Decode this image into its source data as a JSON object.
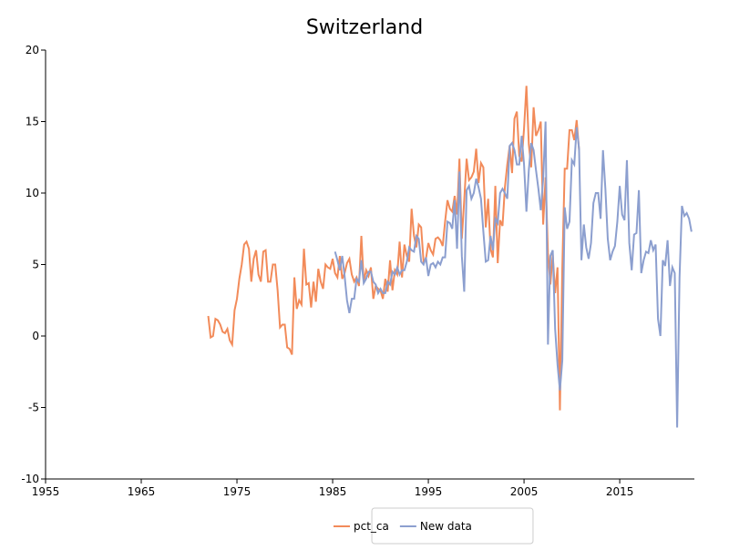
{
  "chart_data": {
    "type": "line",
    "title": "Switzerland",
    "x": [
      1972,
      1972.25,
      1972.5,
      1972.75,
      1973,
      1973.25,
      1973.5,
      1973.75,
      1974,
      1974.25,
      1974.5,
      1974.75,
      1975,
      1975.25,
      1975.5,
      1975.75,
      1976,
      1976.25,
      1976.5,
      1976.75,
      1977,
      1977.25,
      1977.5,
      1977.75,
      1978,
      1978.25,
      1978.5,
      1978.75,
      1979,
      1979.25,
      1979.5,
      1979.75,
      1980,
      1980.25,
      1980.5,
      1980.75,
      1981,
      1981.25,
      1981.5,
      1981.75,
      1982,
      1982.25,
      1982.5,
      1982.75,
      1983,
      1983.25,
      1983.5,
      1983.75,
      1984,
      1984.25,
      1984.5,
      1984.75,
      1985,
      1985.25,
      1985.5,
      1985.75,
      1986,
      1986.25,
      1986.5,
      1986.75,
      1987,
      1987.25,
      1987.5,
      1987.75,
      1988,
      1988.25,
      1988.5,
      1988.75,
      1989,
      1989.25,
      1989.5,
      1989.75,
      1990,
      1990.25,
      1990.5,
      1990.75,
      1991,
      1991.25,
      1991.5,
      1991.75,
      1992,
      1992.25,
      1992.5,
      1992.75,
      1993,
      1993.25,
      1993.5,
      1993.75,
      1994,
      1994.25,
      1994.5,
      1994.75,
      1995,
      1995.25,
      1995.5,
      1995.75,
      1996,
      1996.25,
      1996.5,
      1996.75,
      1997,
      1997.25,
      1997.5,
      1997.75,
      1998,
      1998.25,
      1998.5,
      1998.75,
      1999,
      1999.25,
      1999.5,
      1999.75,
      2000,
      2000.25,
      2000.5,
      2000.75,
      2001,
      2001.25,
      2001.5,
      2001.75,
      2002,
      2002.25,
      2002.5,
      2002.75,
      2003,
      2003.25,
      2003.5,
      2003.75,
      2004,
      2004.25,
      2004.5,
      2004.75,
      2005,
      2005.25,
      2005.5,
      2005.75,
      2006,
      2006.25,
      2006.5,
      2006.75,
      2007,
      2007.25,
      2007.5,
      2007.75,
      2008,
      2008.25,
      2008.5,
      2008.75,
      2009,
      2009.25,
      2009.5,
      2009.75,
      2010,
      2010.25,
      2010.5,
      2010.75,
      2011,
      2011.25,
      2011.5,
      2011.75,
      2012,
      2012.25,
      2012.5,
      2012.75,
      2013,
      2013.25,
      2013.5,
      2013.75,
      2014,
      2014.25,
      2014.5,
      2014.75,
      2015,
      2015.25,
      2015.5,
      2015.75,
      2016,
      2016.25,
      2016.5,
      2016.75,
      2017,
      2017.25,
      2017.5,
      2017.75,
      2018,
      2018.25,
      2018.5,
      2018.75,
      2019,
      2019.25,
      2019.5,
      2019.75,
      2020,
      2020.25,
      2020.5,
      2020.75,
      2021,
      2021.25,
      2021.5,
      2021.75,
      2022,
      2022.25,
      2022.5
    ],
    "series": [
      {
        "name": "pct_ca",
        "color": "#f28b5a",
        "values": [
          1.4,
          -0.1,
          0.0,
          1.2,
          1.1,
          0.8,
          0.3,
          0.2,
          0.5,
          -0.3,
          -0.6,
          1.8,
          2.6,
          4.0,
          5.0,
          6.4,
          6.6,
          6.1,
          3.8,
          5.4,
          6.0,
          4.3,
          3.8,
          5.9,
          6.0,
          3.8,
          3.8,
          5.0,
          5.0,
          3.2,
          0.6,
          0.8,
          0.8,
          -0.8,
          -0.9,
          -1.3,
          4.1,
          1.9,
          2.5,
          2.2,
          6.1,
          3.6,
          3.7,
          2.0,
          3.8,
          2.4,
          4.7,
          3.8,
          3.3,
          5.0,
          4.8,
          4.7,
          5.4,
          4.4,
          4.1,
          5.6,
          4.0,
          4.4,
          5.1,
          5.4,
          4.3,
          3.8,
          4.1,
          3.5,
          7.0,
          3.8,
          4.6,
          4.2,
          4.8,
          2.6,
          3.5,
          3.3,
          3.2,
          2.6,
          4.0,
          3.1,
          5.3,
          3.2,
          4.6,
          4.3,
          6.6,
          4.1,
          6.4,
          5.6,
          5.2,
          8.9,
          7.0,
          6.2,
          7.8,
          7.6,
          5.2,
          5.4,
          6.5,
          6.0,
          5.7,
          6.8,
          6.9,
          6.7,
          6.3,
          8.0,
          9.5,
          8.9,
          8.7,
          9.8,
          8.5,
          12.4,
          6.8,
          9.5,
          12.4,
          10.9,
          11.1,
          11.5,
          13.1,
          10.7,
          12.1,
          11.8,
          7.6,
          9.6,
          6.1,
          5.5,
          10.5,
          5.1,
          8.1,
          7.7,
          10.4,
          12.0,
          13.3,
          11.4,
          15.2,
          15.7,
          12.6,
          12.2,
          14.5,
          17.5,
          13.4,
          11.8,
          16.0,
          14.0,
          14.4,
          15.0,
          7.8,
          11.1,
          5.8,
          3.6,
          5.7,
          3.0,
          4.8,
          -5.2,
          4.8,
          11.7,
          11.7,
          14.4,
          14.4,
          13.7,
          15.1,
          13.0,
          null,
          null,
          null,
          null,
          null,
          null,
          null,
          null,
          null,
          null,
          null,
          null,
          null,
          null,
          null,
          null,
          null,
          null,
          null,
          null,
          null,
          null,
          null,
          null,
          null,
          null,
          null,
          null,
          null,
          null,
          null,
          null,
          null,
          null,
          null,
          null,
          null,
          null,
          null,
          null,
          null,
          null,
          null,
          null,
          null,
          null,
          null
        ]
      },
      {
        "name": "New data",
        "color": "#8c9fcf",
        "values": [
          null,
          null,
          null,
          null,
          null,
          null,
          null,
          null,
          null,
          null,
          null,
          null,
          null,
          null,
          null,
          null,
          null,
          null,
          null,
          null,
          null,
          null,
          null,
          null,
          null,
          null,
          null,
          null,
          null,
          null,
          null,
          null,
          null,
          null,
          null,
          null,
          null,
          null,
          null,
          null,
          null,
          null,
          null,
          null,
          null,
          null,
          null,
          null,
          null,
          null,
          null,
          null,
          null,
          5.9,
          5.3,
          4.6,
          5.6,
          4.2,
          2.5,
          1.6,
          2.6,
          2.6,
          4.0,
          3.8,
          5.3,
          3.7,
          4.0,
          4.5,
          4.5,
          3.8,
          3.6,
          3.0,
          3.3,
          3.0,
          3.0,
          3.8,
          3.6,
          4.5,
          4.3,
          4.8,
          4.3,
          4.6,
          4.6,
          5.2,
          6.2,
          6.0,
          5.9,
          7.0,
          6.8,
          5.2,
          5.0,
          5.5,
          4.2,
          5.0,
          5.1,
          4.8,
          5.2,
          5.0,
          5.5,
          5.5,
          8.0,
          7.9,
          7.5,
          9.5,
          6.1,
          11.5,
          5.6,
          3.1,
          10.2,
          10.5,
          9.6,
          10.0,
          11.0,
          10.4,
          9.6,
          7.3,
          5.2,
          5.3,
          7.0,
          6.0,
          8.2,
          7.9,
          10.0,
          10.3,
          10.0,
          9.6,
          13.3,
          13.5,
          13.0,
          12.0,
          12.0,
          14.0,
          12.0,
          8.7,
          11.6,
          13.5,
          13.0,
          11.6,
          10.3,
          8.8,
          11.0,
          15.0,
          -0.6,
          5.6,
          6.0,
          0.5,
          -2.0,
          -3.8,
          -1.7,
          9.0,
          7.5,
          8.0,
          12.3,
          12.0,
          14.6,
          13.1,
          5.3,
          7.8,
          6.2,
          5.4,
          6.5,
          9.3,
          10.0,
          10.0,
          8.2,
          13.0,
          10.3,
          6.8,
          5.3,
          5.9,
          6.3,
          8.0,
          10.5,
          8.5,
          8.1,
          12.3,
          6.5,
          4.6,
          7.1,
          7.2,
          10.2,
          4.4,
          5.3,
          5.9,
          5.8,
          6.7,
          6.0,
          6.4,
          1.2,
          0.0,
          5.3,
          4.9,
          6.7,
          3.5,
          4.8,
          4.4,
          -6.4,
          4.1,
          9.1,
          8.4,
          8.6,
          8.2,
          7.3
        ]
      }
    ],
    "xlim": [
      1955,
      2022.8
    ],
    "xticks": [
      1955,
      1965,
      1975,
      1985,
      1995,
      2005,
      2015
    ],
    "ylim": [
      -10,
      20
    ],
    "yticks": [
      -10,
      -5,
      0,
      5,
      10,
      15,
      20
    ],
    "legend": "bottom"
  }
}
